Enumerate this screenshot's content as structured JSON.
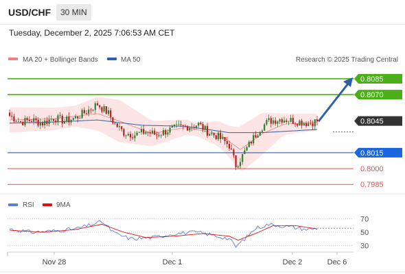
{
  "header": {
    "symbol": "USD/CHF",
    "timeframe": "30 MIN",
    "datetime": "Tuesday, December 2, 2025 7:06:53 AM CET"
  },
  "legend": {
    "items": [
      {
        "label": "MA 20 + Bollinger Bands",
        "color": "#f08080"
      },
      {
        "label": "MA 50",
        "color": "#2e5fa8"
      }
    ],
    "credit": "Research © 2025 Trading Central"
  },
  "rsi_legend": {
    "items": [
      {
        "label": "RSI",
        "color": "#5b7fd6"
      },
      {
        "label": "9MA",
        "color": "#e01010"
      }
    ]
  },
  "colors": {
    "up": "#2e7d32",
    "down": "#b71c1c",
    "resistance": "#4caf1a",
    "pivot": "#2e5fa8",
    "support": "#e05050",
    "current": "#333333"
  },
  "chart_data": {
    "type": "candlestick",
    "price_range": [
      0.7978,
      0.8096
    ],
    "levels": [
      {
        "value": 0.8085,
        "label": "0.8085",
        "kind": "resistance"
      },
      {
        "value": 0.807,
        "label": "0.8070",
        "kind": "resistance"
      },
      {
        "value": 0.8045,
        "label": "0.8045",
        "kind": "current"
      },
      {
        "value": 0.8015,
        "label": "0.8015",
        "kind": "pivot"
      },
      {
        "value": 0.8,
        "label": "0.8000",
        "kind": "support"
      },
      {
        "value": 0.7985,
        "label": "0.7985",
        "kind": "support"
      }
    ],
    "x_labels": [
      "Nov 28",
      "Dec 1",
      "Dec 2",
      "Dec 6"
    ],
    "rsi": {
      "range": [
        20,
        80
      ],
      "ticks": [
        70,
        50,
        30
      ],
      "labels": [
        "70",
        "50",
        "30"
      ]
    },
    "close_anchors": [
      [
        0,
        0.805
      ],
      [
        5,
        0.8044
      ],
      [
        10,
        0.8046
      ],
      [
        15,
        0.8043
      ],
      [
        20,
        0.8048
      ],
      [
        25,
        0.8045
      ],
      [
        30,
        0.8048
      ],
      [
        35,
        0.8054
      ],
      [
        40,
        0.8061
      ],
      [
        45,
        0.8052
      ],
      [
        48,
        0.8042
      ],
      [
        52,
        0.8034
      ],
      [
        57,
        0.8032
      ],
      [
        62,
        0.8035
      ],
      [
        67,
        0.8032
      ],
      [
        72,
        0.8036
      ],
      [
        77,
        0.8039
      ],
      [
        82,
        0.804
      ],
      [
        86,
        0.8042
      ],
      [
        90,
        0.8035
      ],
      [
        95,
        0.803
      ],
      [
        100,
        0.8022
      ],
      [
        103,
        0.8003
      ],
      [
        106,
        0.8012
      ],
      [
        110,
        0.8026
      ],
      [
        114,
        0.8038
      ],
      [
        118,
        0.8045
      ],
      [
        124,
        0.8047
      ],
      [
        130,
        0.8045
      ],
      [
        136,
        0.8043
      ],
      [
        140,
        0.8045
      ]
    ],
    "ma50_anchors": [
      [
        0,
        0.8043
      ],
      [
        20,
        0.8044
      ],
      [
        40,
        0.8046
      ],
      [
        60,
        0.8041
      ],
      [
        80,
        0.804
      ],
      [
        100,
        0.8034
      ],
      [
        115,
        0.8034
      ],
      [
        140,
        0.8037
      ]
    ],
    "ma20_anchors": [
      [
        0,
        0.8046
      ],
      [
        20,
        0.8047
      ],
      [
        40,
        0.8052
      ],
      [
        50,
        0.8045
      ],
      [
        65,
        0.8033
      ],
      [
        80,
        0.8039
      ],
      [
        95,
        0.8033
      ],
      [
        105,
        0.8018
      ],
      [
        115,
        0.8033
      ],
      [
        125,
        0.8042
      ],
      [
        140,
        0.8044
      ]
    ],
    "band_width_anchors": [
      [
        0,
        0.0012
      ],
      [
        30,
        0.001
      ],
      [
        40,
        0.0016
      ],
      [
        50,
        0.002
      ],
      [
        65,
        0.0012
      ],
      [
        85,
        0.0006
      ],
      [
        100,
        0.0015
      ],
      [
        106,
        0.0022
      ],
      [
        115,
        0.002
      ],
      [
        125,
        0.001
      ],
      [
        140,
        0.0008
      ]
    ],
    "rsi_anchors": [
      [
        0,
        55
      ],
      [
        10,
        50
      ],
      [
        20,
        52
      ],
      [
        30,
        55
      ],
      [
        38,
        62
      ],
      [
        42,
        66
      ],
      [
        48,
        48
      ],
      [
        55,
        40
      ],
      [
        65,
        42
      ],
      [
        75,
        48
      ],
      [
        85,
        50
      ],
      [
        92,
        46
      ],
      [
        100,
        40
      ],
      [
        103,
        28
      ],
      [
        107,
        40
      ],
      [
        112,
        56
      ],
      [
        118,
        62
      ],
      [
        128,
        58
      ],
      [
        136,
        54
      ],
      [
        140,
        56
      ]
    ],
    "rsi_ma_anchors": [
      [
        0,
        53
      ],
      [
        15,
        50
      ],
      [
        30,
        54
      ],
      [
        42,
        62
      ],
      [
        52,
        50
      ],
      [
        62,
        42
      ],
      [
        75,
        44
      ],
      [
        88,
        48
      ],
      [
        100,
        44
      ],
      [
        104,
        38
      ],
      [
        112,
        48
      ],
      [
        120,
        60
      ],
      [
        130,
        60
      ],
      [
        140,
        55
      ]
    ]
  }
}
